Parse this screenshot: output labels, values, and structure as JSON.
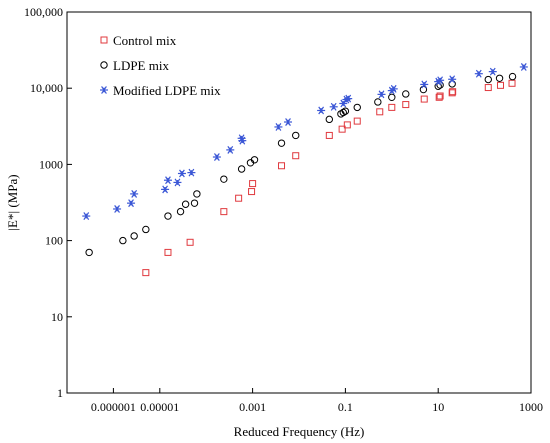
{
  "chart_data": {
    "type": "scatter",
    "title": "",
    "xlabel": "Reduced Frequency (Hz)",
    "ylabel": "|E*| (MPa)",
    "xscale": "log",
    "yscale": "log",
    "xlim": [
      1e-07,
      1000
    ],
    "ylim": [
      1,
      100000
    ],
    "xticks": [
      {
        "value": 1e-06,
        "label": "0.000001"
      },
      {
        "value": 1e-05,
        "label": "0.00001"
      },
      {
        "value": 0.001,
        "label": "0.001"
      },
      {
        "value": 0.1,
        "label": "0.1"
      },
      {
        "value": 10,
        "label": "10"
      },
      {
        "value": 1000,
        "label": "1000"
      }
    ],
    "yticks": [
      {
        "value": 1,
        "label": "1"
      },
      {
        "value": 10,
        "label": "10"
      },
      {
        "value": 100,
        "label": "100"
      },
      {
        "value": 1000,
        "label": "1000"
      },
      {
        "value": 10000,
        "label": "10,000"
      },
      {
        "value": 100000,
        "label": "100,000"
      }
    ],
    "grid": false,
    "legend_position": "top-left",
    "series": [
      {
        "name": "Control mix",
        "marker": "square",
        "color": "#e0393e",
        "points": [
          [
            5e-06,
            38
          ],
          [
            1.5e-05,
            70
          ],
          [
            4.5e-05,
            95
          ],
          [
            0.00024,
            240
          ],
          [
            0.0005,
            360
          ],
          [
            0.00095,
            440
          ],
          [
            0.001,
            560
          ],
          [
            0.0042,
            960
          ],
          [
            0.0085,
            1300
          ],
          [
            0.045,
            2400
          ],
          [
            0.085,
            2900
          ],
          [
            0.11,
            3300
          ],
          [
            0.18,
            3700
          ],
          [
            0.55,
            4900
          ],
          [
            1.0,
            5600
          ],
          [
            2.0,
            6100
          ],
          [
            5.0,
            7200
          ],
          [
            10.5,
            7600
          ],
          [
            11,
            7900
          ],
          [
            20,
            8700
          ],
          [
            20.5,
            9000
          ],
          [
            120,
            10200
          ],
          [
            220,
            10900
          ],
          [
            390,
            11600
          ]
        ]
      },
      {
        "name": "LDPE mix",
        "marker": "circle",
        "color": "#000000",
        "points": [
          [
            3e-07,
            70
          ],
          [
            1.6e-06,
            100
          ],
          [
            2.8e-06,
            115
          ],
          [
            5e-06,
            140
          ],
          [
            1.5e-05,
            210
          ],
          [
            2.8e-05,
            240
          ],
          [
            3.6e-05,
            300
          ],
          [
            5.6e-05,
            310
          ],
          [
            6.3e-05,
            410
          ],
          [
            0.00024,
            640
          ],
          [
            0.00058,
            870
          ],
          [
            0.0009,
            1050
          ],
          [
            0.0011,
            1150
          ],
          [
            0.0042,
            1900
          ],
          [
            0.0085,
            2400
          ],
          [
            0.045,
            3900
          ],
          [
            0.08,
            4600
          ],
          [
            0.09,
            4800
          ],
          [
            0.1,
            5000
          ],
          [
            0.18,
            5600
          ],
          [
            0.5,
            6600
          ],
          [
            1.0,
            7600
          ],
          [
            2.0,
            8400
          ],
          [
            4.8,
            9600
          ],
          [
            10,
            10600
          ],
          [
            11,
            11000
          ],
          [
            20,
            11400
          ],
          [
            120,
            13000
          ],
          [
            210,
            13500
          ],
          [
            400,
            14200
          ]
        ]
      },
      {
        "name": "Modified LDPE mix",
        "marker": "asterisk",
        "color": "#3b57d6",
        "points": [
          [
            2.6e-07,
            210
          ],
          [
            1.2e-06,
            260
          ],
          [
            2.4e-06,
            310
          ],
          [
            2.8e-06,
            410
          ],
          [
            1.3e-05,
            470
          ],
          [
            1.5e-05,
            620
          ],
          [
            2.4e-05,
            580
          ],
          [
            3e-05,
            760
          ],
          [
            4.8e-05,
            780
          ],
          [
            0.00017,
            1250
          ],
          [
            0.00033,
            1550
          ],
          [
            0.00058,
            2200
          ],
          [
            0.0006,
            2050
          ],
          [
            0.0036,
            3100
          ],
          [
            0.0058,
            3600
          ],
          [
            0.03,
            5100
          ],
          [
            0.056,
            5700
          ],
          [
            0.09,
            6300
          ],
          [
            0.105,
            7100
          ],
          [
            0.115,
            7300
          ],
          [
            0.6,
            8300
          ],
          [
            1.0,
            9300
          ],
          [
            1.1,
            9800
          ],
          [
            5.0,
            11200
          ],
          [
            10,
            12200
          ],
          [
            11,
            12700
          ],
          [
            20,
            13100
          ],
          [
            75,
            15500
          ],
          [
            150,
            16500
          ],
          [
            700,
            19000
          ]
        ]
      }
    ]
  }
}
